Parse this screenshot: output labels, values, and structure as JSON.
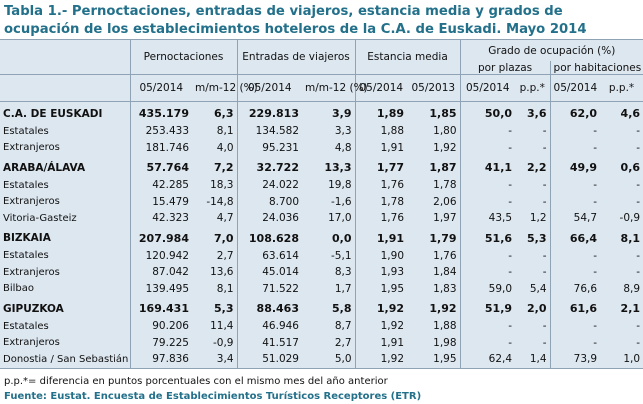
{
  "title": "Tabla 1.- Pernoctaciones, entradas de viajeros, estancia media y grados de ocupación de los establecimientos hoteleros de la C.A. de Euskadi. Mayo 2014",
  "table": {
    "header": {
      "pernoctaciones": "Pernoctaciones",
      "entradas": "Entradas de viajeros",
      "estancia": "Estancia media",
      "grado": "Grado de ocupación (%)",
      "plazas": "por plazas",
      "habitaciones": "por habitaciones",
      "sub": [
        "05/2014",
        "m/m-12 (%)",
        "05/2014",
        "m/m-12 (%)",
        "05/2014",
        "05/2013",
        "05/2014",
        "p.p.*",
        "05/2014",
        "p.p.*"
      ]
    },
    "groups": [
      {
        "label": "C.A. DE EUSKADI",
        "values": [
          "435.179",
          "6,3",
          "229.813",
          "3,9",
          "1,89",
          "1,85",
          "50,0",
          "3,6",
          "62,0",
          "4,6"
        ],
        "rows": [
          {
            "label": "Estatales",
            "values": [
              "253.433",
              "8,1",
              "134.582",
              "3,3",
              "1,88",
              "1,80",
              "-",
              "-",
              "-",
              "-"
            ]
          },
          {
            "label": "Extranjeros",
            "values": [
              "181.746",
              "4,0",
              "95.231",
              "4,8",
              "1,91",
              "1,92",
              "-",
              "-",
              "-",
              "-"
            ]
          }
        ]
      },
      {
        "label": "ARABA/ÁLAVA",
        "values": [
          "57.764",
          "7,2",
          "32.722",
          "13,3",
          "1,77",
          "1,87",
          "41,1",
          "2,2",
          "49,9",
          "0,6"
        ],
        "rows": [
          {
            "label": "Estatales",
            "values": [
              "42.285",
              "18,3",
              "24.022",
              "19,8",
              "1,76",
              "1,78",
              "-",
              "-",
              "-",
              "-"
            ]
          },
          {
            "label": "Extranjeros",
            "values": [
              "15.479",
              "-14,8",
              "8.700",
              "-1,6",
              "1,78",
              "2,06",
              "-",
              "-",
              "-",
              "-"
            ]
          },
          {
            "label": "Vitoria-Gasteiz",
            "values": [
              "42.323",
              "4,7",
              "24.036",
              "17,0",
              "1,76",
              "1,97",
              "43,5",
              "1,2",
              "54,7",
              "-0,9"
            ]
          }
        ]
      },
      {
        "label": "BIZKAIA",
        "values": [
          "207.984",
          "7,0",
          "108.628",
          "0,0",
          "1,91",
          "1,79",
          "51,6",
          "5,3",
          "66,4",
          "8,1"
        ],
        "rows": [
          {
            "label": "Estatales",
            "values": [
              "120.942",
              "2,7",
              "63.614",
              "-5,1",
              "1,90",
              "1,76",
              "-",
              "-",
              "-",
              "-"
            ]
          },
          {
            "label": "Extranjeros",
            "values": [
              "87.042",
              "13,6",
              "45.014",
              "8,3",
              "1,93",
              "1,84",
              "-",
              "-",
              "-",
              "-"
            ]
          },
          {
            "label": "Bilbao",
            "values": [
              "139.495",
              "8,1",
              "71.522",
              "1,7",
              "1,95",
              "1,83",
              "59,0",
              "5,4",
              "76,6",
              "8,9"
            ]
          }
        ]
      },
      {
        "label": "GIPUZKOA",
        "values": [
          "169.431",
          "5,3",
          "88.463",
          "5,8",
          "1,92",
          "1,92",
          "51,9",
          "2,0",
          "61,6",
          "2,1"
        ],
        "rows": [
          {
            "label": "Estatales",
            "values": [
              "90.206",
              "11,4",
              "46.946",
              "8,7",
              "1,92",
              "1,88",
              "-",
              "-",
              "-",
              "-"
            ]
          },
          {
            "label": "Extranjeros",
            "values": [
              "79.225",
              "-0,9",
              "41.517",
              "2,7",
              "1,91",
              "1,98",
              "-",
              "-",
              "-",
              "-"
            ]
          },
          {
            "label": "Donostia / San Sebastián",
            "values": [
              "97.836",
              "3,4",
              "51.029",
              "5,0",
              "1,92",
              "1,95",
              "62,4",
              "1,4",
              "73,9",
              "1,0"
            ]
          }
        ]
      }
    ]
  },
  "footnote": "p.p.*= diferencia en puntos porcentuales con el mismo mes del año anterior",
  "source": "Fuente: Eustat. Encuesta de Establecimientos Turísticos Receptores (ETR)"
}
